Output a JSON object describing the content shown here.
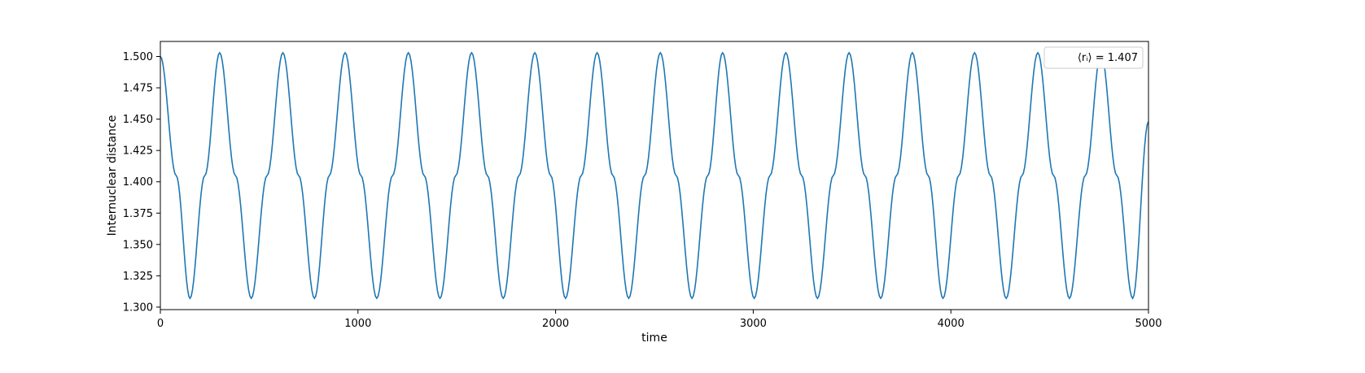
{
  "chart_data": {
    "type": "line",
    "title": "",
    "xlabel": "time",
    "ylabel": "Internuclear distance",
    "xlim": [
      0,
      5000
    ],
    "ylim": [
      1.298,
      1.512
    ],
    "x_ticks": [
      0,
      1000,
      2000,
      3000,
      4000,
      5000
    ],
    "x_tick_labels": [
      "0",
      "1000",
      "2000",
      "3000",
      "4000",
      "5000"
    ],
    "y_ticks": [
      1.3,
      1.325,
      1.35,
      1.375,
      1.4,
      1.425,
      1.45,
      1.475,
      1.5
    ],
    "y_tick_labels": [
      "1.300",
      "1.325",
      "1.350",
      "1.375",
      "1.400",
      "1.425",
      "1.450",
      "1.475",
      "1.500"
    ],
    "grid": false,
    "legend_position": "top-right",
    "legend_label": "⟨rᵢ⟩ = 1.407",
    "series": [
      {
        "color": "#1f77b4",
        "x": [
          0,
          80,
          150,
          225,
          300,
          380,
          460,
          540,
          620,
          700,
          780,
          855,
          935,
          1015,
          1095,
          1175,
          1255,
          1335,
          1415,
          1495,
          1575,
          1655,
          1735,
          1815,
          1895,
          1975,
          2050,
          2130,
          2210,
          2290,
          2370,
          2450,
          2530,
          2610,
          2690,
          2770,
          2845,
          2925,
          3005,
          3085,
          3165,
          3245,
          3325,
          3405,
          3485,
          3565,
          3645,
          3725,
          3805,
          3885,
          3960,
          4040,
          4120,
          4200,
          4280,
          4360,
          4440,
          4520,
          4600,
          4680,
          4760,
          4840,
          4920,
          5000
        ],
        "y": [
          1.5,
          1.405,
          1.307,
          1.405,
          1.503,
          1.405,
          1.307,
          1.405,
          1.503,
          1.405,
          1.307,
          1.405,
          1.503,
          1.405,
          1.307,
          1.405,
          1.503,
          1.405,
          1.307,
          1.405,
          1.503,
          1.405,
          1.307,
          1.405,
          1.503,
          1.405,
          1.307,
          1.405,
          1.503,
          1.405,
          1.307,
          1.405,
          1.503,
          1.405,
          1.307,
          1.405,
          1.503,
          1.405,
          1.307,
          1.405,
          1.503,
          1.405,
          1.307,
          1.405,
          1.503,
          1.405,
          1.307,
          1.405,
          1.503,
          1.405,
          1.307,
          1.405,
          1.503,
          1.405,
          1.307,
          1.405,
          1.503,
          1.405,
          1.307,
          1.405,
          1.503,
          1.405,
          1.307,
          1.448
        ]
      }
    ]
  }
}
